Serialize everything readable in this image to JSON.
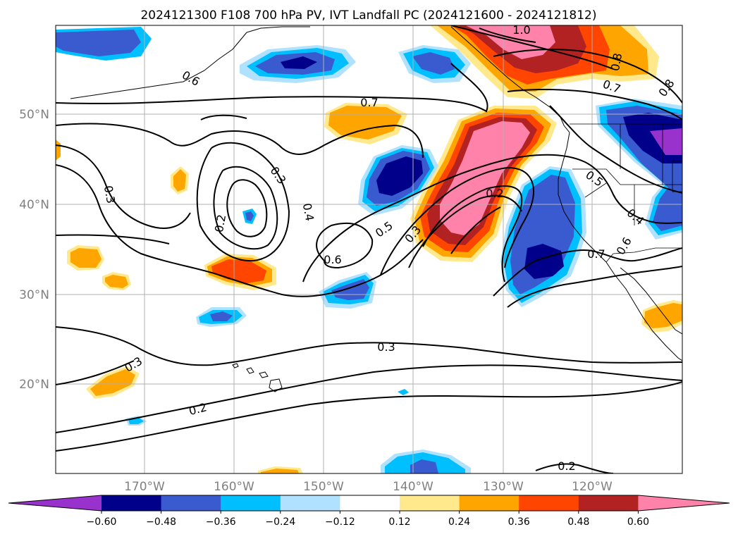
{
  "title": "2024121300 F108 700 hPa PV, IVT Landfall PC (2024121600 - 2024121812)",
  "map": {
    "lat_labels": [
      "50°N",
      "40°N",
      "30°N",
      "20°N"
    ],
    "lon_labels": [
      "170°W",
      "160°W",
      "150°W",
      "140°W",
      "130°W",
      "120°W"
    ],
    "contour_labels": [
      "1.0",
      "0.8",
      "0.8",
      "0.7",
      "0.6",
      "0.7",
      "0.3",
      "0.3",
      "0.4",
      "0.2",
      "0.6",
      "0.5",
      "0.3",
      "0.2",
      "0.5",
      "0.4",
      "0.6",
      "0.7",
      "0.3",
      "0.3",
      "0.2",
      "0.2"
    ]
  },
  "colorbar": {
    "colors": [
      "#9932cc",
      "#00008b",
      "#3a5bd0",
      "#00bfff",
      "#b0e2ff",
      "#ffffff",
      "#ffe98c",
      "#ffa500",
      "#ff4500",
      "#b22222",
      "#ff82ab"
    ],
    "ticks": [
      "−0.60",
      "−0.48",
      "−0.36",
      "−0.24",
      "−0.12",
      "0.12",
      "0.24",
      "0.36",
      "0.48",
      "0.60"
    ]
  }
}
